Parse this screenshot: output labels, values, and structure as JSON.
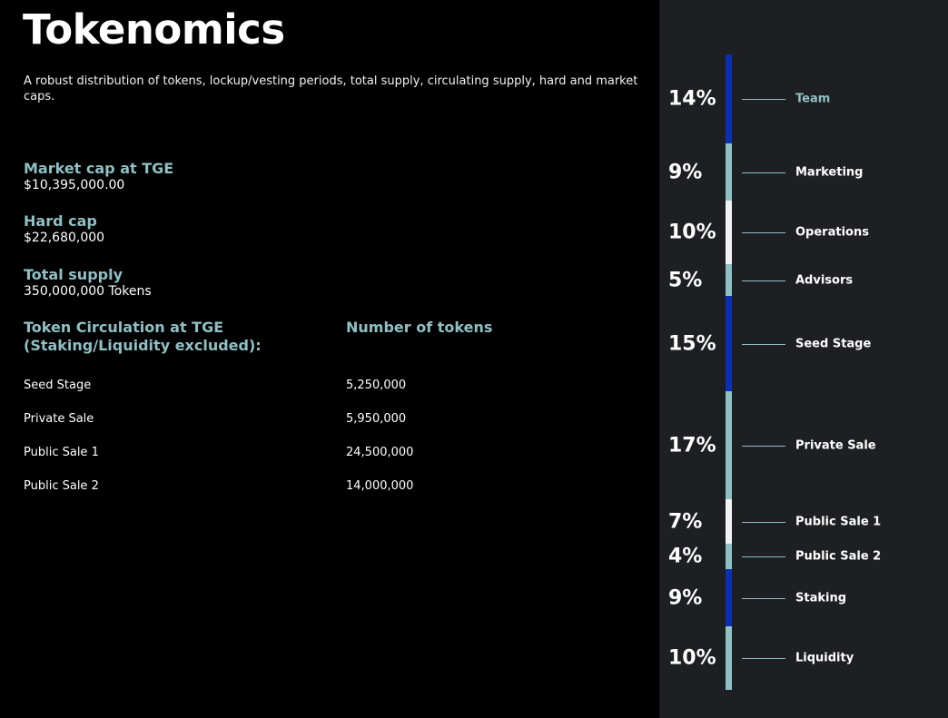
{
  "title": "Tokenomics",
  "subtitle": "A robust distribution of tokens, lockup/vesting periods, total supply, circulating supply, hard and market caps.",
  "stats": [
    {
      "label": "Market cap at TGE",
      "value": "$10,395,000.00"
    },
    {
      "label": "Hard cap",
      "value": "$22,680,000"
    },
    {
      "label": "Total supply",
      "value": "350,000,000 Tokens"
    }
  ],
  "circulation": {
    "heading_line1": "Token Circulation at TGE",
    "heading_line2": "(Staking/Liquidity excluded):",
    "number_heading": "Number of tokens",
    "rows": [
      {
        "name": "Seed Stage",
        "tokens": "5,250,000"
      },
      {
        "name": "Private Sale",
        "tokens": "5,950,000"
      },
      {
        "name": "Public Sale 1",
        "tokens": "24,500,000"
      },
      {
        "name": "Public Sale 2",
        "tokens": "14,000,000"
      }
    ]
  },
  "colors": {
    "accent": "#8fc0c4",
    "blue": "#0b2fb3",
    "teal": "#8fc0c4",
    "white": "#f2f2f2",
    "panel": "#1e1f22"
  },
  "distribution": [
    {
      "label": "Team",
      "percent": "14%",
      "color": "#0b2fb3",
      "label_color": "#8fc0c4"
    },
    {
      "label": "Marketing",
      "percent": "9%",
      "color": "#8fc0c4"
    },
    {
      "label": "Operations",
      "percent": "10%",
      "color": "#f2f2f2"
    },
    {
      "label": "Advisors",
      "percent": "5%",
      "color": "#8fc0c4"
    },
    {
      "label": "Seed Stage",
      "percent": "15%",
      "color": "#0b2fb3"
    },
    {
      "label": "Private Sale",
      "percent": "17%",
      "color": "#8fc0c4"
    },
    {
      "label": "Public Sale 1",
      "percent": "7%",
      "color": "#f2f2f2"
    },
    {
      "label": "Public Sale 2",
      "percent": "4%",
      "color": "#8fc0c4"
    },
    {
      "label": "Staking",
      "percent": "9%",
      "color": "#0b2fb3"
    },
    {
      "label": "Liquidity",
      "percent": "10%",
      "color": "#8fc0c4"
    }
  ]
}
